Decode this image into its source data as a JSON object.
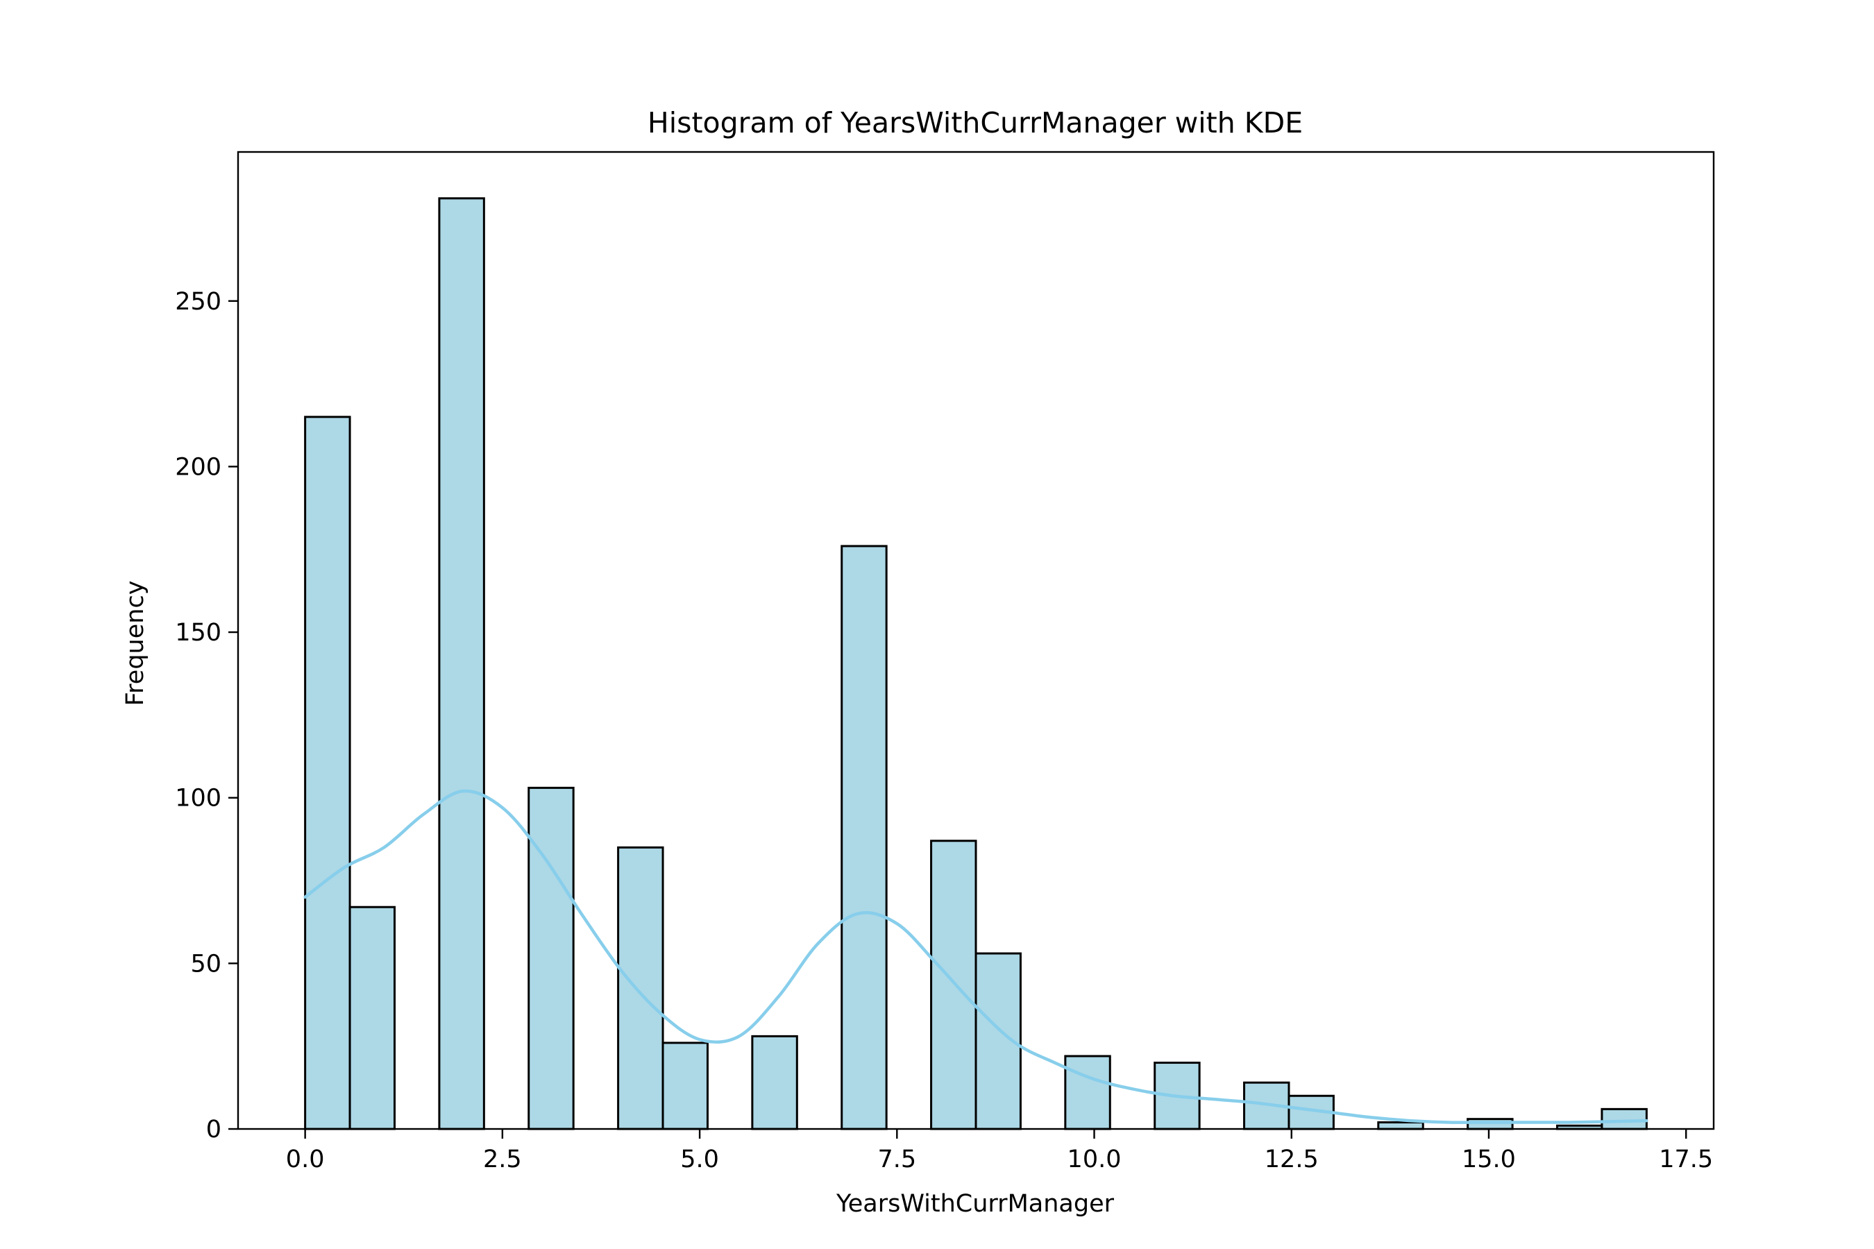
{
  "chart_data": {
    "type": "bar",
    "title": "Histogram of YearsWithCurrManager with KDE",
    "xlabel": "YearsWithCurrManager",
    "ylabel": "Frequency",
    "xlim": [
      -0.85,
      17.85
    ],
    "ylim": [
      0,
      295
    ],
    "x_ticks": [
      0.0,
      2.5,
      5.0,
      7.5,
      10.0,
      12.5,
      15.0,
      17.5
    ],
    "x_tick_labels": [
      "0.0",
      "2.5",
      "5.0",
      "7.5",
      "10.0",
      "12.5",
      "15.0",
      "17.5"
    ],
    "y_ticks": [
      0,
      50,
      100,
      150,
      200,
      250
    ],
    "y_tick_labels": [
      "0",
      "50",
      "100",
      "150",
      "200",
      "250"
    ],
    "bin_width": 0.5667,
    "bins": [
      {
        "x0": 0.0,
        "value": 215
      },
      {
        "x0": 0.5667,
        "value": 67
      },
      {
        "x0": 1.1333,
        "value": 0
      },
      {
        "x0": 1.7,
        "value": 281
      },
      {
        "x0": 2.2667,
        "value": 0
      },
      {
        "x0": 2.8333,
        "value": 103
      },
      {
        "x0": 3.4,
        "value": 0
      },
      {
        "x0": 3.9667,
        "value": 85
      },
      {
        "x0": 4.5333,
        "value": 26
      },
      {
        "x0": 5.1,
        "value": 0
      },
      {
        "x0": 5.6667,
        "value": 28
      },
      {
        "x0": 6.2333,
        "value": 0
      },
      {
        "x0": 6.8,
        "value": 176
      },
      {
        "x0": 7.3667,
        "value": 0
      },
      {
        "x0": 7.9333,
        "value": 87
      },
      {
        "x0": 8.5,
        "value": 53
      },
      {
        "x0": 9.0667,
        "value": 0
      },
      {
        "x0": 9.6333,
        "value": 22
      },
      {
        "x0": 10.2,
        "value": 0
      },
      {
        "x0": 10.7667,
        "value": 20
      },
      {
        "x0": 11.3333,
        "value": 0
      },
      {
        "x0": 11.9,
        "value": 14
      },
      {
        "x0": 12.4667,
        "value": 10
      },
      {
        "x0": 13.0333,
        "value": 0
      },
      {
        "x0": 13.6,
        "value": 2
      },
      {
        "x0": 14.1667,
        "value": 0
      },
      {
        "x0": 14.7333,
        "value": 3
      },
      {
        "x0": 15.3,
        "value": 0
      },
      {
        "x0": 15.8667,
        "value": 1
      },
      {
        "x0": 16.4333,
        "value": 6
      }
    ],
    "kde": {
      "x": [
        0.0,
        0.5,
        1.0,
        1.5,
        2.0,
        2.5,
        3.0,
        3.5,
        4.0,
        4.5,
        5.0,
        5.5,
        6.0,
        6.5,
        7.0,
        7.5,
        8.0,
        8.5,
        9.0,
        9.5,
        10.0,
        10.5,
        11.0,
        11.5,
        12.0,
        12.5,
        13.0,
        13.5,
        14.0,
        14.5,
        15.0,
        15.5,
        16.0,
        16.5,
        17.0
      ],
      "y": [
        70,
        79,
        85,
        95,
        102,
        97,
        83,
        65,
        48,
        35,
        27,
        28,
        40,
        56,
        65,
        62,
        50,
        37,
        26,
        20,
        15,
        12,
        10,
        9,
        8,
        6.5,
        5,
        3.5,
        2.5,
        2,
        2,
        2,
        2,
        2.2,
        2.5
      ]
    },
    "bar_fill": "#add8e6",
    "bar_edge": "#000000",
    "kde_color": "#87ceeb",
    "grid": false,
    "legend": false
  }
}
